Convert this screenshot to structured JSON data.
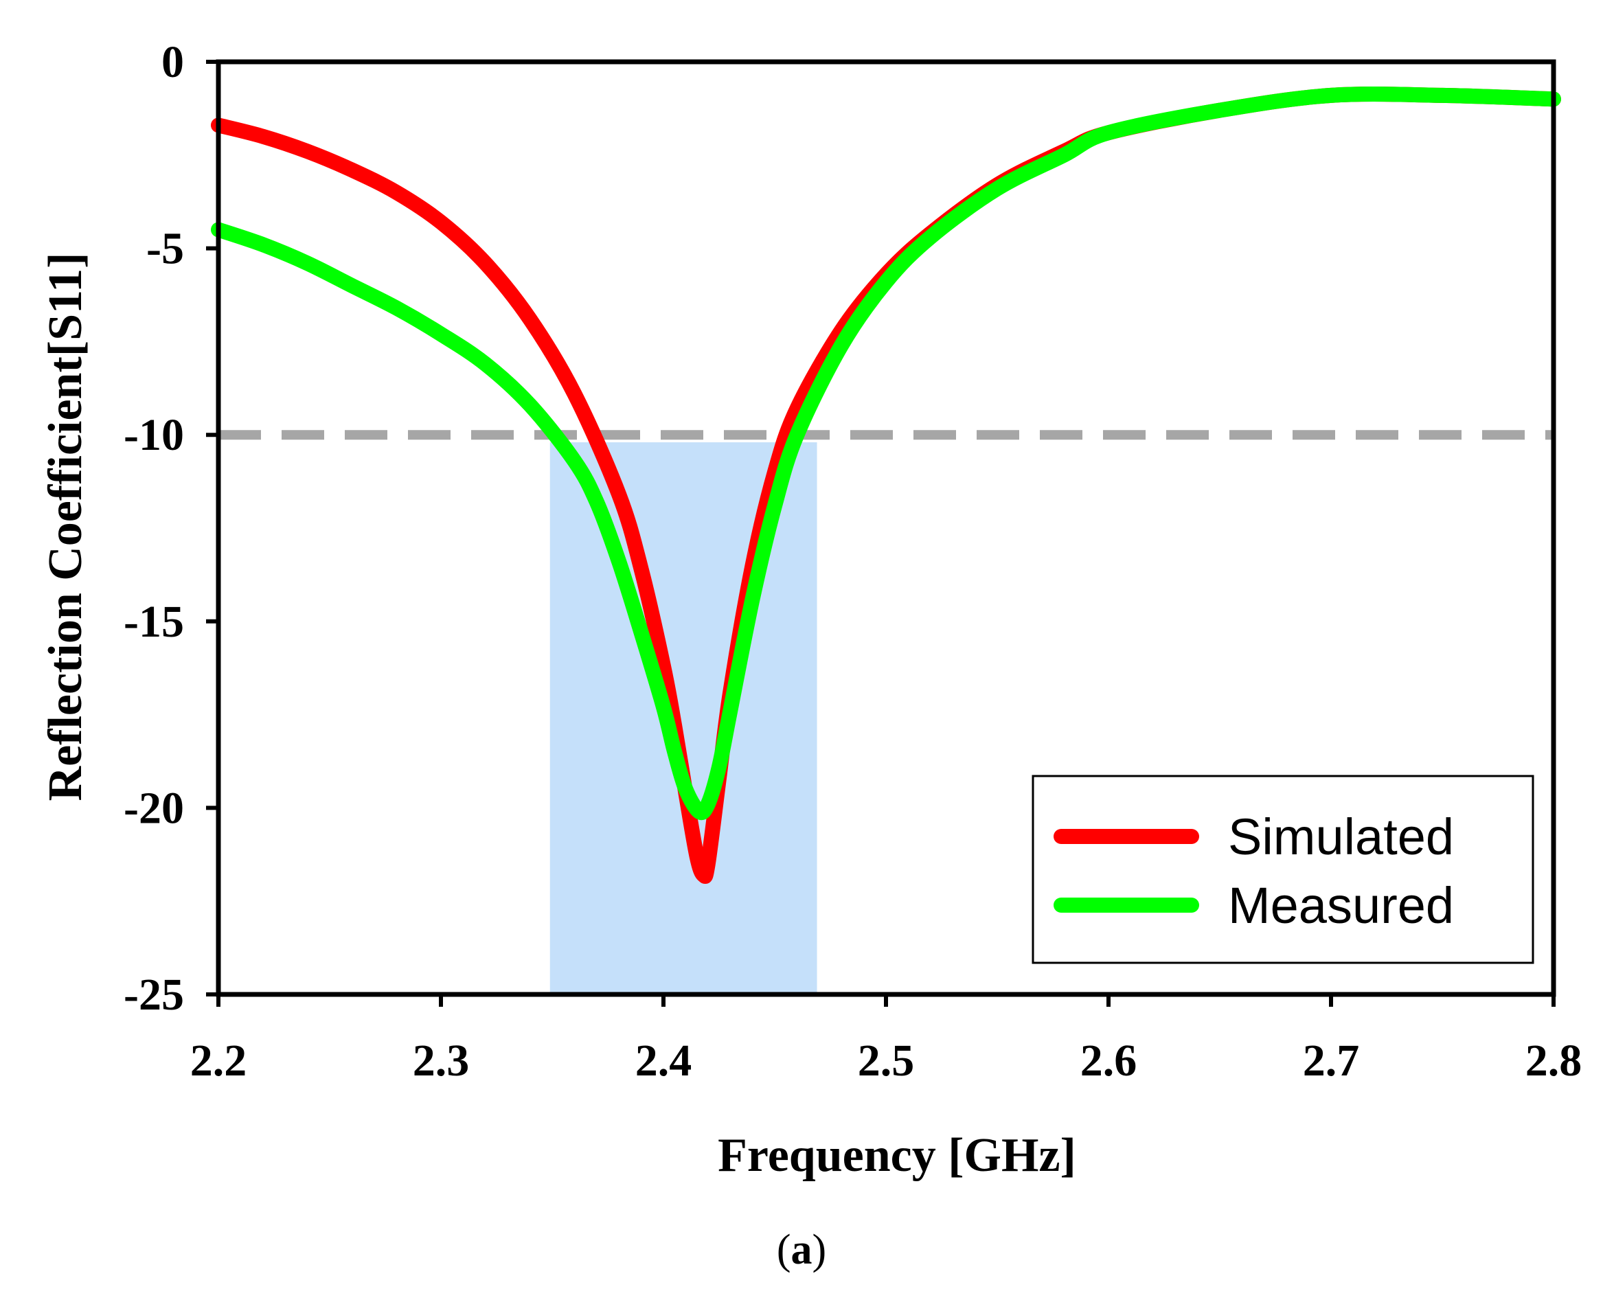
{
  "chart_data": {
    "type": "line",
    "title": "",
    "caption": {
      "open": "(",
      "letter": "a",
      "close": ")"
    },
    "xlabel": "Frequency [GHz]",
    "ylabel": "Reflection Coefficient[S11]",
    "xlim": [
      2.2,
      2.8
    ],
    "ylim": [
      -25,
      0
    ],
    "xticks": [
      2.2,
      2.3,
      2.4,
      2.5,
      2.6,
      2.7,
      2.8
    ],
    "xtick_labels": [
      "2.2",
      "2.3",
      "2.4",
      "2.5",
      "2.6",
      "2.7",
      "2.8"
    ],
    "yticks": [
      0,
      -5,
      -10,
      -15,
      -20,
      -25
    ],
    "ytick_labels": [
      "0",
      "-5",
      "-10",
      "-15",
      "-20",
      "-25"
    ],
    "grid": false,
    "legend_position": "bottom-right",
    "reference_line": {
      "y": -10,
      "style": "dashed",
      "color": "#a6a6a6"
    },
    "highlight_band": {
      "x_start": 2.349,
      "x_end": 2.469,
      "y_top": -10.2,
      "y_bottom": -25,
      "color": "#c5e0fa"
    },
    "series": [
      {
        "name": "Simulated",
        "color": "#ff0000",
        "x": [
          2.2,
          2.22,
          2.24,
          2.26,
          2.28,
          2.3,
          2.32,
          2.34,
          2.36,
          2.38,
          2.39,
          2.4,
          2.405,
          2.41,
          2.415,
          2.418,
          2.42,
          2.425,
          2.43,
          2.44,
          2.45,
          2.46,
          2.48,
          2.5,
          2.52,
          2.55,
          2.58,
          2.6,
          2.65,
          2.7,
          2.75,
          2.8
        ],
        "y": [
          -1.7,
          -2.0,
          -2.4,
          -2.9,
          -3.5,
          -4.3,
          -5.4,
          -6.9,
          -8.9,
          -11.6,
          -13.6,
          -16.2,
          -17.8,
          -19.6,
          -21.3,
          -21.8,
          -21.5,
          -19.2,
          -16.9,
          -13.5,
          -11.0,
          -9.3,
          -7.2,
          -5.7,
          -4.6,
          -3.3,
          -2.4,
          -1.9,
          -1.3,
          -0.9,
          -0.9,
          -1.0
        ]
      },
      {
        "name": "Measured",
        "color": "#00ff00",
        "x": [
          2.2,
          2.22,
          2.24,
          2.26,
          2.28,
          2.3,
          2.32,
          2.34,
          2.36,
          2.37,
          2.38,
          2.39,
          2.4,
          2.405,
          2.41,
          2.416,
          2.42,
          2.425,
          2.43,
          2.44,
          2.45,
          2.46,
          2.48,
          2.5,
          2.52,
          2.55,
          2.58,
          2.6,
          2.65,
          2.7,
          2.75,
          2.8
        ],
        "y": [
          -4.5,
          -4.9,
          -5.4,
          -6.0,
          -6.6,
          -7.3,
          -8.1,
          -9.2,
          -10.7,
          -11.8,
          -13.4,
          -15.3,
          -17.3,
          -18.5,
          -19.5,
          -20.1,
          -19.9,
          -18.9,
          -17.4,
          -14.4,
          -11.9,
          -10.0,
          -7.6,
          -5.9,
          -4.7,
          -3.4,
          -2.5,
          -1.9,
          -1.3,
          -0.9,
          -0.9,
          -1.0
        ]
      }
    ]
  }
}
